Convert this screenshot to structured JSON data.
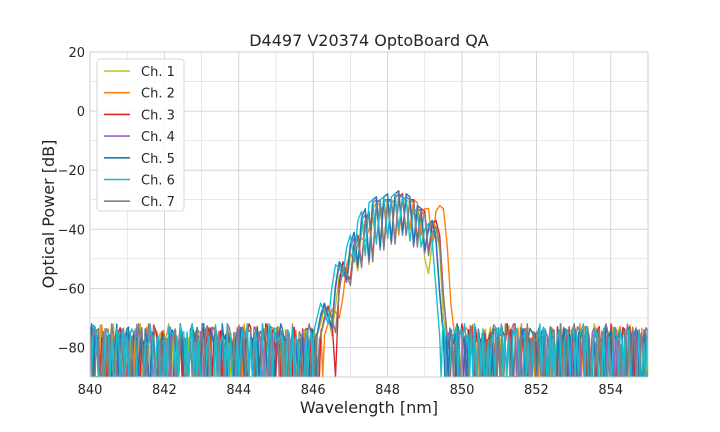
{
  "chart_data": {
    "type": "line",
    "title": "D4497 V20374 OptoBoard QA",
    "xlabel": "Wavelength [nm]",
    "ylabel": "Optical Power [dB]",
    "xlim": [
      840,
      855
    ],
    "ylim": [
      -90,
      20
    ],
    "x_ticks": [
      840,
      842,
      844,
      846,
      848,
      850,
      852,
      854
    ],
    "y_ticks": [
      20,
      0,
      -20,
      -40,
      -60,
      -80
    ],
    "x_tick_labels": [
      "840",
      "842",
      "844",
      "846",
      "848",
      "850",
      "852",
      "854"
    ],
    "y_tick_labels": [
      "20",
      "0",
      "−20",
      "−40",
      "−60",
      "−80"
    ],
    "grid": true,
    "legend_position": "top-left",
    "noise_floor": {
      "mean": -84,
      "top": -73,
      "bottom": -90
    },
    "series": [
      {
        "name": "Ch. 1",
        "color": "#bcbd22",
        "points": [
          [
            846.1,
            -76
          ],
          [
            846.2,
            -72
          ],
          [
            846.3,
            -67
          ],
          [
            846.4,
            -69
          ],
          [
            846.5,
            -76
          ],
          [
            846.6,
            -66
          ],
          [
            846.7,
            -56
          ],
          [
            846.8,
            -53
          ],
          [
            846.9,
            -58
          ],
          [
            847.0,
            -49
          ],
          [
            847.1,
            -48
          ],
          [
            847.2,
            -54
          ],
          [
            847.3,
            -40
          ],
          [
            847.4,
            -38
          ],
          [
            847.5,
            -52
          ],
          [
            847.6,
            -33
          ],
          [
            847.7,
            -31
          ],
          [
            847.8,
            -45
          ],
          [
            847.9,
            -30
          ],
          [
            848.0,
            -31
          ],
          [
            848.1,
            -44
          ],
          [
            848.2,
            -29
          ],
          [
            848.3,
            -29
          ],
          [
            848.4,
            -41
          ],
          [
            848.5,
            -30
          ],
          [
            848.6,
            -31
          ],
          [
            848.7,
            -44
          ],
          [
            848.8,
            -35
          ],
          [
            848.9,
            -37
          ],
          [
            849.0,
            -50
          ],
          [
            849.1,
            -55
          ],
          [
            849.2,
            -45
          ],
          [
            849.3,
            -40
          ],
          [
            849.4,
            -47
          ],
          [
            849.5,
            -70
          ],
          [
            849.6,
            -76
          ]
        ]
      },
      {
        "name": "Ch. 2",
        "color": "#ff7f0e",
        "points": [
          [
            846.3,
            -76
          ],
          [
            846.4,
            -72
          ],
          [
            846.5,
            -67
          ],
          [
            846.6,
            -68
          ],
          [
            846.7,
            -70
          ],
          [
            846.8,
            -63
          ],
          [
            846.9,
            -52
          ],
          [
            847.0,
            -48
          ],
          [
            847.1,
            -51
          ],
          [
            847.2,
            -45
          ],
          [
            847.3,
            -43
          ],
          [
            847.4,
            -44
          ],
          [
            847.5,
            -40
          ],
          [
            847.6,
            -36
          ],
          [
            847.7,
            -44
          ],
          [
            847.8,
            -34
          ],
          [
            847.9,
            -32
          ],
          [
            848.0,
            -43
          ],
          [
            848.1,
            -31
          ],
          [
            848.2,
            -30
          ],
          [
            848.3,
            -42
          ],
          [
            848.4,
            -30
          ],
          [
            848.5,
            -30
          ],
          [
            848.6,
            -40
          ],
          [
            848.7,
            -30
          ],
          [
            848.8,
            -31
          ],
          [
            848.9,
            -42
          ],
          [
            849.0,
            -33
          ],
          [
            849.1,
            -33
          ],
          [
            849.2,
            -45
          ],
          [
            849.3,
            -34
          ],
          [
            849.4,
            -32
          ],
          [
            849.5,
            -33
          ],
          [
            849.6,
            -45
          ],
          [
            849.7,
            -65
          ],
          [
            849.8,
            -76
          ]
        ]
      },
      {
        "name": "Ch. 3",
        "color": "#d62728",
        "points": [
          [
            846.2,
            -76
          ],
          [
            846.3,
            -70
          ],
          [
            846.4,
            -66
          ],
          [
            846.5,
            -70
          ],
          [
            846.6,
            -90
          ],
          [
            846.7,
            -58
          ],
          [
            846.8,
            -51
          ],
          [
            846.9,
            -55
          ],
          [
            847.0,
            -57
          ],
          [
            847.1,
            -45
          ],
          [
            847.2,
            -42
          ],
          [
            847.3,
            -52
          ],
          [
            847.4,
            -37
          ],
          [
            847.5,
            -34
          ],
          [
            847.6,
            -50
          ],
          [
            847.7,
            -31
          ],
          [
            847.8,
            -30
          ],
          [
            847.9,
            -46
          ],
          [
            848.0,
            -30
          ],
          [
            848.1,
            -30
          ],
          [
            848.2,
            -44
          ],
          [
            848.3,
            -29
          ],
          [
            848.4,
            -28
          ],
          [
            848.5,
            -42
          ],
          [
            848.6,
            -30
          ],
          [
            848.7,
            -30
          ],
          [
            848.8,
            -44
          ],
          [
            848.9,
            -33
          ],
          [
            849.0,
            -34
          ],
          [
            849.1,
            -48
          ],
          [
            849.2,
            -38
          ],
          [
            849.3,
            -37
          ],
          [
            849.4,
            -42
          ],
          [
            849.5,
            -62
          ],
          [
            849.6,
            -76
          ]
        ]
      },
      {
        "name": "Ch. 4",
        "color": "#9467bd",
        "points": [
          [
            846.1,
            -76
          ],
          [
            846.2,
            -70
          ],
          [
            846.3,
            -66
          ],
          [
            846.4,
            -70
          ],
          [
            846.5,
            -74
          ],
          [
            846.6,
            -60
          ],
          [
            846.7,
            -52
          ],
          [
            846.8,
            -54
          ],
          [
            846.9,
            -58
          ],
          [
            847.0,
            -46
          ],
          [
            847.1,
            -43
          ],
          [
            847.2,
            -53
          ],
          [
            847.3,
            -37
          ],
          [
            847.4,
            -35
          ],
          [
            847.5,
            -51
          ],
          [
            847.6,
            -31
          ],
          [
            847.7,
            -30
          ],
          [
            847.8,
            -47
          ],
          [
            847.9,
            -30
          ],
          [
            848.0,
            -30
          ],
          [
            848.1,
            -45
          ],
          [
            848.2,
            -29
          ],
          [
            848.3,
            -28
          ],
          [
            848.4,
            -42
          ],
          [
            848.5,
            -29
          ],
          [
            848.6,
            -30
          ],
          [
            848.7,
            -46
          ],
          [
            848.8,
            -33
          ],
          [
            848.9,
            -34
          ],
          [
            849.0,
            -48
          ],
          [
            849.1,
            -40
          ],
          [
            849.2,
            -38
          ],
          [
            849.3,
            -44
          ],
          [
            849.4,
            -62
          ],
          [
            849.5,
            -76
          ]
        ]
      },
      {
        "name": "Ch. 5",
        "color": "#1f77b4",
        "points": [
          [
            846.1,
            -76
          ],
          [
            846.2,
            -69
          ],
          [
            846.3,
            -65
          ],
          [
            846.4,
            -69
          ],
          [
            846.5,
            -73
          ],
          [
            846.6,
            -59
          ],
          [
            846.7,
            -51
          ],
          [
            846.8,
            -53
          ],
          [
            846.9,
            -57
          ],
          [
            847.0,
            -45
          ],
          [
            847.1,
            -41
          ],
          [
            847.2,
            -52
          ],
          [
            847.3,
            -36
          ],
          [
            847.4,
            -33
          ],
          [
            847.5,
            -50
          ],
          [
            847.6,
            -30
          ],
          [
            847.7,
            -29
          ],
          [
            847.8,
            -46
          ],
          [
            847.9,
            -29
          ],
          [
            848.0,
            -28
          ],
          [
            848.1,
            -44
          ],
          [
            848.2,
            -28
          ],
          [
            848.3,
            -27
          ],
          [
            848.4,
            -41
          ],
          [
            848.5,
            -28
          ],
          [
            848.6,
            -29
          ],
          [
            848.7,
            -45
          ],
          [
            848.8,
            -32
          ],
          [
            848.9,
            -33
          ],
          [
            849.0,
            -47
          ],
          [
            849.1,
            -39
          ],
          [
            849.2,
            -37
          ],
          [
            849.3,
            -43
          ],
          [
            849.4,
            -61
          ],
          [
            849.5,
            -76
          ]
        ]
      },
      {
        "name": "Ch. 6",
        "color": "#17becf",
        "points": [
          [
            846.0,
            -76
          ],
          [
            846.1,
            -70
          ],
          [
            846.2,
            -65
          ],
          [
            846.3,
            -68
          ],
          [
            846.4,
            -72
          ],
          [
            846.5,
            -60
          ],
          [
            846.6,
            -52
          ],
          [
            846.7,
            -53
          ],
          [
            846.8,
            -56
          ],
          [
            846.9,
            -46
          ],
          [
            847.0,
            -42
          ],
          [
            847.1,
            -51
          ],
          [
            847.2,
            -37
          ],
          [
            847.3,
            -34
          ],
          [
            847.4,
            -49
          ],
          [
            847.5,
            -31
          ],
          [
            847.6,
            -30
          ],
          [
            847.7,
            -45
          ],
          [
            847.8,
            -30
          ],
          [
            847.9,
            -29
          ],
          [
            848.0,
            -43
          ],
          [
            848.1,
            -29
          ],
          [
            848.2,
            -28
          ],
          [
            848.3,
            -40
          ],
          [
            848.4,
            -29
          ],
          [
            848.5,
            -30
          ],
          [
            848.6,
            -44
          ],
          [
            848.7,
            -33
          ],
          [
            848.8,
            -34
          ],
          [
            848.9,
            -46
          ],
          [
            849.0,
            -40
          ],
          [
            849.1,
            -38
          ],
          [
            849.2,
            -44
          ],
          [
            849.3,
            -60
          ],
          [
            849.4,
            -76
          ]
        ]
      },
      {
        "name": "Ch. 7",
        "color": "#7f7f7f",
        "points": [
          [
            846.2,
            -76
          ],
          [
            846.3,
            -71
          ],
          [
            846.4,
            -67
          ],
          [
            846.5,
            -70
          ],
          [
            846.6,
            -75
          ],
          [
            846.7,
            -61
          ],
          [
            846.8,
            -53
          ],
          [
            846.9,
            -55
          ],
          [
            847.0,
            -59
          ],
          [
            847.1,
            -47
          ],
          [
            847.2,
            -43
          ],
          [
            847.3,
            -53
          ],
          [
            847.4,
            -38
          ],
          [
            847.5,
            -35
          ],
          [
            847.6,
            -51
          ],
          [
            847.7,
            -32
          ],
          [
            847.8,
            -31
          ],
          [
            847.9,
            -47
          ],
          [
            848.0,
            -31
          ],
          [
            848.1,
            -30
          ],
          [
            848.2,
            -45
          ],
          [
            848.3,
            -29
          ],
          [
            848.4,
            -29
          ],
          [
            848.5,
            -42
          ],
          [
            848.6,
            -30
          ],
          [
            848.7,
            -31
          ],
          [
            848.8,
            -46
          ],
          [
            848.9,
            -34
          ],
          [
            849.0,
            -35
          ],
          [
            849.1,
            -49
          ],
          [
            849.2,
            -41
          ],
          [
            849.3,
            -39
          ],
          [
            849.4,
            -45
          ],
          [
            849.5,
            -63
          ],
          [
            849.6,
            -76
          ]
        ]
      }
    ]
  }
}
